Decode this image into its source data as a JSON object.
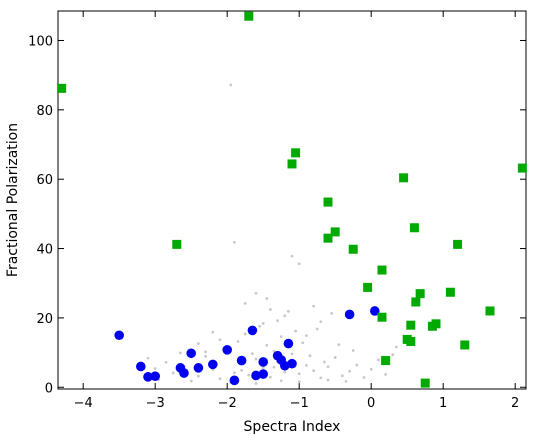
{
  "chart_data": {
    "type": "scatter",
    "xlabel": "Spectra Index",
    "ylabel": "Fractional Polarization",
    "xlim": [
      -4.35,
      2.15
    ],
    "ylim": [
      -0.5,
      108.5
    ],
    "x_ticks": [
      -4,
      -3,
      -2,
      -1,
      0,
      1,
      2
    ],
    "x_tick_labels": [
      "−4",
      "−3",
      "−2",
      "−1",
      "0",
      "1",
      "2"
    ],
    "y_ticks": [
      0,
      20,
      40,
      60,
      80,
      100
    ],
    "y_tick_labels": [
      "0",
      "20",
      "40",
      "60",
      "80",
      "100"
    ],
    "grid": false,
    "series": [
      {
        "marker": "dot",
        "color": "#c8c8c8",
        "points": [
          [
            -2.4,
            3.2
          ],
          [
            -2.2,
            5.1
          ],
          [
            -2.1,
            2.5
          ],
          [
            -1.9,
            4.2
          ],
          [
            -1.8,
            6.8
          ],
          [
            -1.7,
            3.5
          ],
          [
            -1.6,
            8.1
          ],
          [
            -1.5,
            5.6
          ],
          [
            -1.4,
            2.9
          ],
          [
            -1.3,
            7.4
          ],
          [
            -1.2,
            4.4
          ],
          [
            -1.1,
            9.6
          ],
          [
            -1.0,
            3.9
          ],
          [
            -0.9,
            6.3
          ],
          [
            -0.8,
            4.8
          ],
          [
            -0.7,
            2.7
          ],
          [
            -0.6,
            5.9
          ],
          [
            -0.5,
            8.6
          ],
          [
            -2.6,
            6.1
          ],
          [
            -2.3,
            8.9
          ],
          [
            -2.0,
            11.3
          ],
          [
            -1.85,
            13.2
          ],
          [
            -1.65,
            9.7
          ],
          [
            -1.45,
            12.1
          ],
          [
            -1.35,
            10.4
          ],
          [
            -1.25,
            14.6
          ],
          [
            -1.15,
            11.8
          ],
          [
            -1.05,
            16.2
          ],
          [
            -0.95,
            12.8
          ],
          [
            -0.85,
            9.1
          ],
          [
            -1.75,
            15.4
          ],
          [
            -1.55,
            17.6
          ],
          [
            -1.5,
            18.4
          ],
          [
            -1.3,
            19.2
          ],
          [
            -1.2,
            20.6
          ],
          [
            -2.75,
            4.1
          ],
          [
            -2.85,
            7.2
          ],
          [
            -2.95,
            2.2
          ],
          [
            -2.5,
            1.8
          ],
          [
            -1.95,
            1.4
          ],
          [
            -1.6,
            1.1
          ],
          [
            -1.0,
            1.6
          ],
          [
            -0.6,
            2.1
          ],
          [
            -0.4,
            3.3
          ],
          [
            -0.3,
            4.6
          ],
          [
            -0.2,
            6.4
          ],
          [
            -0.1,
            2.8
          ],
          [
            0.0,
            5.2
          ],
          [
            0.1,
            7.9
          ],
          [
            0.2,
            3.7
          ],
          [
            -1.95,
            87.2
          ],
          [
            -1.9,
            41.8
          ],
          [
            -1.1,
            37.8
          ],
          [
            -1.0,
            35.6
          ],
          [
            -1.45,
            25.6
          ],
          [
            -1.6,
            27.1
          ],
          [
            -1.75,
            24.2
          ],
          [
            -0.8,
            23.4
          ],
          [
            -0.7,
            18.9
          ],
          [
            -0.55,
            21.3
          ],
          [
            -2.1,
            13.7
          ],
          [
            -2.2,
            15.9
          ],
          [
            -2.4,
            12.6
          ],
          [
            -2.3,
            10.2
          ],
          [
            -1.4,
            22.4
          ],
          [
            -1.15,
            21.9
          ],
          [
            -0.9,
            14.9
          ],
          [
            -0.75,
            16.8
          ],
          [
            -0.45,
            12.3
          ],
          [
            -0.25,
            10.6
          ],
          [
            0.3,
            9.4
          ],
          [
            0.35,
            11.6
          ],
          [
            -3.0,
            5.4
          ],
          [
            -3.1,
            8.4
          ],
          [
            -2.65,
            9.9
          ],
          [
            -1.8,
            4.9
          ],
          [
            -1.35,
            5.8
          ],
          [
            -1.25,
            1.9
          ],
          [
            -0.65,
            7.3
          ],
          [
            -0.35,
            1.7
          ]
        ]
      },
      {
        "marker": "circle",
        "color": "#0000ee",
        "points": [
          [
            -3.5,
            15.0
          ],
          [
            -3.2,
            6.0
          ],
          [
            -3.1,
            3.0
          ],
          [
            -3.0,
            3.2
          ],
          [
            -2.65,
            5.6
          ],
          [
            -2.6,
            4.1
          ],
          [
            -2.5,
            9.8
          ],
          [
            -2.4,
            5.6
          ],
          [
            -2.2,
            6.6
          ],
          [
            -2.0,
            10.8
          ],
          [
            -1.9,
            2.0
          ],
          [
            -1.8,
            7.7
          ],
          [
            -1.65,
            16.4
          ],
          [
            -1.6,
            3.4
          ],
          [
            -1.5,
            7.3
          ],
          [
            -1.5,
            3.8
          ],
          [
            -1.3,
            9.1
          ],
          [
            -1.25,
            7.9
          ],
          [
            -1.2,
            6.2
          ],
          [
            -1.15,
            12.6
          ],
          [
            -1.1,
            6.8
          ],
          [
            -0.3,
            21.0
          ],
          [
            0.05,
            22.0
          ]
        ]
      },
      {
        "marker": "square",
        "color": "#00aa00",
        "points": [
          [
            -4.3,
            86.2
          ],
          [
            -2.7,
            41.2
          ],
          [
            -1.7,
            107.0
          ],
          [
            -1.1,
            64.4
          ],
          [
            -1.05,
            67.6
          ],
          [
            -0.6,
            53.4
          ],
          [
            -0.6,
            43.0
          ],
          [
            -0.5,
            44.8
          ],
          [
            -0.25,
            39.8
          ],
          [
            -0.05,
            28.8
          ],
          [
            0.15,
            33.8
          ],
          [
            0.15,
            20.2
          ],
          [
            0.2,
            7.7
          ],
          [
            0.45,
            60.4
          ],
          [
            0.5,
            13.8
          ],
          [
            0.55,
            13.2
          ],
          [
            0.55,
            17.9
          ],
          [
            0.6,
            46.0
          ],
          [
            0.62,
            24.6
          ],
          [
            0.68,
            27.0
          ],
          [
            0.75,
            1.2
          ],
          [
            0.85,
            17.6
          ],
          [
            0.9,
            18.3
          ],
          [
            1.1,
            27.4
          ],
          [
            1.2,
            41.2
          ],
          [
            1.3,
            12.2
          ],
          [
            1.65,
            22.0
          ],
          [
            2.1,
            63.2
          ]
        ]
      }
    ]
  }
}
